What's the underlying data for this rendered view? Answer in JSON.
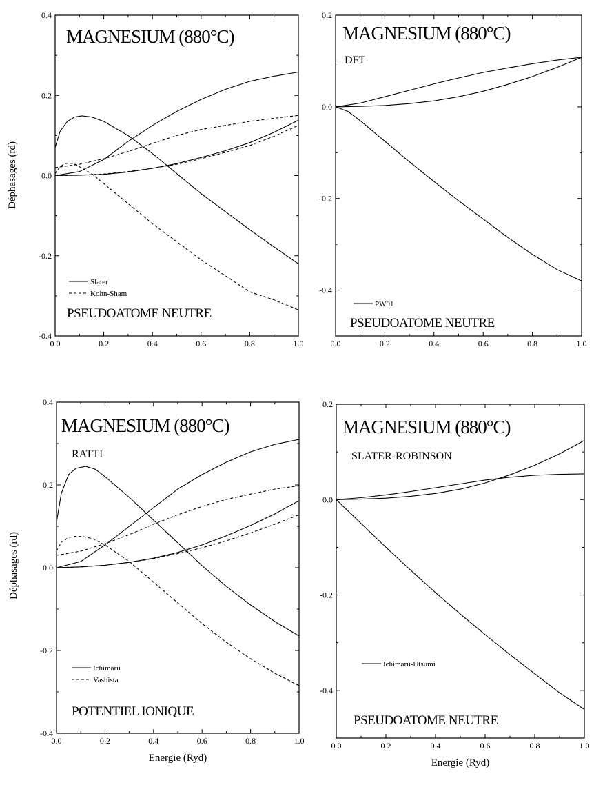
{
  "chart_data": [
    {
      "type": "line",
      "title": "MAGNESIUM (880°C)",
      "subtitle": "",
      "annotation": "PSEUDOATOME NEUTRE",
      "xlabel": "",
      "ylabel": "Déphasages (rd)",
      "xlim": [
        0,
        1
      ],
      "ylim": [
        -0.4,
        0.4
      ],
      "xticks": [
        "0.0",
        "0.2",
        "0.4",
        "0.6",
        "0.8",
        "1.0"
      ],
      "yticks": [
        "-0.4",
        "-0.2",
        "0.0",
        "0.2",
        "0.4"
      ],
      "legend": [
        {
          "label": "Slater",
          "style": "solid"
        },
        {
          "label": "Kohn-Sham",
          "style": "dashed"
        }
      ],
      "series": [
        {
          "style": "solid",
          "x": [
            0,
            0.02,
            0.05,
            0.08,
            0.11,
            0.15,
            0.2,
            0.3,
            0.4,
            0.5,
            0.6,
            0.7,
            0.8,
            0.9,
            1.0
          ],
          "y": [
            0.07,
            0.11,
            0.135,
            0.146,
            0.149,
            0.146,
            0.135,
            0.1,
            0.055,
            0.005,
            -0.045,
            -0.09,
            -0.135,
            -0.178,
            -0.22
          ]
        },
        {
          "style": "solid",
          "x": [
            0,
            0.1,
            0.2,
            0.3,
            0.4,
            0.5,
            0.6,
            0.7,
            0.8,
            0.9,
            1.0
          ],
          "y": [
            0,
            0.01,
            0.04,
            0.085,
            0.125,
            0.16,
            0.19,
            0.215,
            0.235,
            0.248,
            0.258
          ]
        },
        {
          "style": "solid",
          "x": [
            0,
            0.1,
            0.2,
            0.3,
            0.4,
            0.5,
            0.6,
            0.7,
            0.8,
            0.9,
            1.0
          ],
          "y": [
            0,
            0.001,
            0.003,
            0.009,
            0.018,
            0.03,
            0.045,
            0.062,
            0.082,
            0.108,
            0.138
          ]
        },
        {
          "style": "dashed",
          "x": [
            0,
            0.02,
            0.04,
            0.06,
            0.08,
            0.1,
            0.15,
            0.2,
            0.3,
            0.4,
            0.5,
            0.6,
            0.7,
            0.8,
            0.9,
            1.0
          ],
          "y": [
            0.005,
            0.022,
            0.03,
            0.031,
            0.029,
            0.022,
            0.005,
            -0.02,
            -0.07,
            -0.12,
            -0.165,
            -0.21,
            -0.25,
            -0.29,
            -0.31,
            -0.335
          ]
        },
        {
          "style": "dashed",
          "x": [
            0,
            0.1,
            0.2,
            0.3,
            0.4,
            0.5,
            0.6,
            0.7,
            0.8,
            0.9,
            1.0
          ],
          "y": [
            0.02,
            0.028,
            0.042,
            0.06,
            0.08,
            0.1,
            0.115,
            0.125,
            0.135,
            0.143,
            0.15
          ]
        },
        {
          "style": "dashed",
          "x": [
            0,
            0.1,
            0.2,
            0.3,
            0.4,
            0.5,
            0.6,
            0.7,
            0.8,
            0.9,
            1.0
          ],
          "y": [
            0,
            0.001,
            0.004,
            0.01,
            0.018,
            0.028,
            0.042,
            0.058,
            0.075,
            0.098,
            0.125
          ]
        }
      ]
    },
    {
      "type": "line",
      "title": "MAGNESIUM (880°C)",
      "subtitle": "DFT",
      "annotation": "PSEUDOATOME NEUTRE",
      "xlabel": "",
      "ylabel": "",
      "xlim": [
        0,
        1
      ],
      "ylim": [
        -0.5,
        0.2
      ],
      "xticks": [
        "0.0",
        "0.2",
        "0.4",
        "0.6",
        "0.8",
        "1.0"
      ],
      "yticks": [
        "-0.4",
        "-0.2",
        "0.0",
        "0.2"
      ],
      "legend": [
        {
          "label": "PW91",
          "style": "solid"
        }
      ],
      "series": [
        {
          "style": "solid",
          "x": [
            0,
            0.05,
            0.1,
            0.2,
            0.3,
            0.4,
            0.5,
            0.6,
            0.7,
            0.8,
            0.9,
            1.0
          ],
          "y": [
            0,
            -0.01,
            -0.03,
            -0.075,
            -0.12,
            -0.163,
            -0.205,
            -0.245,
            -0.285,
            -0.322,
            -0.355,
            -0.38
          ]
        },
        {
          "style": "solid",
          "x": [
            0,
            0.1,
            0.2,
            0.3,
            0.4,
            0.5,
            0.6,
            0.7,
            0.8,
            0.9,
            1.0
          ],
          "y": [
            0,
            0.008,
            0.022,
            0.036,
            0.05,
            0.063,
            0.075,
            0.085,
            0.094,
            0.102,
            0.108
          ]
        },
        {
          "style": "solid",
          "x": [
            0,
            0.1,
            0.2,
            0.3,
            0.4,
            0.5,
            0.6,
            0.7,
            0.8,
            0.9,
            1.0
          ],
          "y": [
            0,
            0.001,
            0.003,
            0.007,
            0.013,
            0.022,
            0.034,
            0.049,
            0.066,
            0.086,
            0.108
          ]
        }
      ]
    },
    {
      "type": "line",
      "title": "MAGNESIUM (880°C)",
      "subtitle": "RATTI",
      "annotation": "POTENTIEL IONIQUE",
      "xlabel": "Energie (Ryd)",
      "ylabel": "Déphasages (rd)",
      "xlim": [
        0,
        1
      ],
      "ylim": [
        -0.4,
        0.4
      ],
      "xticks": [
        "0.0",
        "0.2",
        "0.4",
        "0.6",
        "0.8",
        "1.0"
      ],
      "yticks": [
        "-0.4",
        "-0.2",
        "0.0",
        "0.2",
        "0.4"
      ],
      "legend": [
        {
          "label": "Ichimaru",
          "style": "solid"
        },
        {
          "label": "Vashista",
          "style": "dashed"
        }
      ],
      "series": [
        {
          "style": "solid",
          "x": [
            0,
            0.02,
            0.05,
            0.08,
            0.12,
            0.16,
            0.2,
            0.3,
            0.4,
            0.5,
            0.6,
            0.7,
            0.8,
            0.9,
            1.0
          ],
          "y": [
            0.11,
            0.18,
            0.225,
            0.24,
            0.245,
            0.238,
            0.22,
            0.17,
            0.115,
            0.06,
            0.005,
            -0.045,
            -0.09,
            -0.13,
            -0.165
          ]
        },
        {
          "style": "solid",
          "x": [
            0,
            0.1,
            0.2,
            0.3,
            0.4,
            0.5,
            0.6,
            0.7,
            0.8,
            0.9,
            1.0
          ],
          "y": [
            0,
            0.015,
            0.055,
            0.1,
            0.145,
            0.19,
            0.225,
            0.255,
            0.28,
            0.298,
            0.31
          ]
        },
        {
          "style": "solid",
          "x": [
            0,
            0.1,
            0.2,
            0.3,
            0.4,
            0.5,
            0.6,
            0.7,
            0.8,
            0.9,
            1.0
          ],
          "y": [
            0,
            0.002,
            0.006,
            0.013,
            0.023,
            0.037,
            0.055,
            0.077,
            0.102,
            0.13,
            0.162
          ]
        },
        {
          "style": "dashed",
          "x": [
            0,
            0.02,
            0.05,
            0.08,
            0.11,
            0.15,
            0.2,
            0.3,
            0.4,
            0.5,
            0.6,
            0.7,
            0.8,
            0.9,
            1.0
          ],
          "y": [
            0.04,
            0.062,
            0.073,
            0.076,
            0.075,
            0.07,
            0.055,
            0.015,
            -0.035,
            -0.085,
            -0.135,
            -0.18,
            -0.22,
            -0.255,
            -0.285
          ]
        },
        {
          "style": "dashed",
          "x": [
            0,
            0.1,
            0.2,
            0.3,
            0.4,
            0.5,
            0.6,
            0.7,
            0.8,
            0.9,
            1.0
          ],
          "y": [
            0.03,
            0.04,
            0.058,
            0.08,
            0.105,
            0.128,
            0.148,
            0.165,
            0.178,
            0.19,
            0.198
          ]
        },
        {
          "style": "dashed",
          "x": [
            0,
            0.1,
            0.2,
            0.3,
            0.4,
            0.5,
            0.6,
            0.7,
            0.8,
            0.9,
            1.0
          ],
          "y": [
            0,
            0.002,
            0.006,
            0.013,
            0.022,
            0.034,
            0.048,
            0.065,
            0.084,
            0.105,
            0.128
          ]
        }
      ]
    },
    {
      "type": "line",
      "title": "MAGNESIUM (880°C)",
      "subtitle": "SLATER-ROBINSON",
      "annotation": "PSEUDOATOME NEUTRE",
      "xlabel": "Energie (Ryd)",
      "ylabel": "",
      "xlim": [
        0,
        1
      ],
      "ylim": [
        -0.5,
        0.2
      ],
      "xticks": [
        "0.0",
        "0.2",
        "0.4",
        "0.6",
        "0.8",
        "1.0"
      ],
      "yticks": [
        "-0.4",
        "-0.2",
        "0.0",
        "0.2"
      ],
      "legend": [
        {
          "label": "Ichimaru-Utsumi",
          "style": "solid"
        }
      ],
      "series": [
        {
          "style": "solid",
          "x": [
            0,
            0.1,
            0.2,
            0.3,
            0.4,
            0.5,
            0.6,
            0.7,
            0.8,
            0.9,
            1.0
          ],
          "y": [
            0,
            -0.05,
            -0.1,
            -0.148,
            -0.195,
            -0.24,
            -0.283,
            -0.325,
            -0.365,
            -0.405,
            -0.44
          ]
        },
        {
          "style": "solid",
          "x": [
            0,
            0.1,
            0.2,
            0.3,
            0.4,
            0.5,
            0.6,
            0.7,
            0.8,
            0.9,
            1.0
          ],
          "y": [
            0,
            0.004,
            0.01,
            0.017,
            0.025,
            0.033,
            0.041,
            0.047,
            0.051,
            0.053,
            0.054
          ]
        },
        {
          "style": "solid",
          "x": [
            0,
            0.1,
            0.2,
            0.3,
            0.4,
            0.5,
            0.6,
            0.7,
            0.8,
            0.9,
            1.0
          ],
          "y": [
            0,
            0.001,
            0.003,
            0.007,
            0.013,
            0.022,
            0.035,
            0.052,
            0.072,
            0.096,
            0.124
          ]
        }
      ]
    }
  ]
}
